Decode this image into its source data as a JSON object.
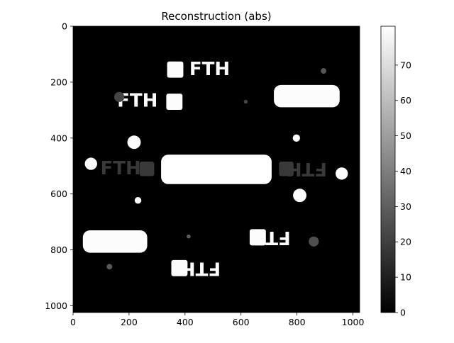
{
  "chart_data": {
    "type": "heatmap",
    "title": "Reconstruction (abs)",
    "xlabel": "",
    "ylabel": "",
    "xlim": [
      0,
      1024
    ],
    "ylim": [
      1024,
      0
    ],
    "x_ticks": [
      0,
      200,
      400,
      600,
      800,
      1000
    ],
    "y_ticks": [
      0,
      200,
      400,
      600,
      800,
      1000
    ],
    "colorbar": {
      "range": [
        0,
        81
      ],
      "ticks": [
        0,
        10,
        20,
        30,
        40,
        50,
        60,
        70
      ],
      "colormap": "gray"
    },
    "background_value": 0,
    "grid": false,
    "text_marks": [
      {
        "text": "FTH",
        "x": 488,
        "y": 155,
        "mirrored": false,
        "value": 80
      },
      {
        "text": "FTH",
        "x": 230,
        "y": 268,
        "mirrored": false,
        "value": 80
      },
      {
        "text": "FTH",
        "x": 170,
        "y": 510,
        "mirrored": false,
        "value": 18
      },
      {
        "text": "FTH",
        "x": 835,
        "y": 510,
        "mirrored": true,
        "value": 18
      },
      {
        "text": "FTH",
        "x": 705,
        "y": 755,
        "mirrored": true,
        "value": 80
      },
      {
        "text": "FTH",
        "x": 455,
        "y": 865,
        "mirrored": true,
        "value": 80
      }
    ],
    "blobs": [
      {
        "x": 835,
        "y": 250,
        "w": 235,
        "h": 80,
        "value": 80
      },
      {
        "x": 150,
        "y": 770,
        "w": 230,
        "h": 80,
        "value": 80
      },
      {
        "x": 512,
        "y": 512,
        "w": 395,
        "h": 105,
        "value": 81
      },
      {
        "x": 220,
        "y": 715,
        "w": 1,
        "h": 1,
        "value": 0
      }
    ],
    "squares": [
      {
        "x": 365,
        "y": 155,
        "size": 58,
        "value": 80
      },
      {
        "x": 362,
        "y": 270,
        "size": 58,
        "value": 80
      },
      {
        "x": 264,
        "y": 510,
        "size": 52,
        "value": 18
      },
      {
        "x": 762,
        "y": 510,
        "size": 52,
        "value": 18
      },
      {
        "x": 660,
        "y": 755,
        "size": 58,
        "value": 80
      },
      {
        "x": 380,
        "y": 865,
        "size": 58,
        "value": 80
      }
    ],
    "dots": [
      {
        "x": 165,
        "y": 253,
        "r": 18,
        "value": 22
      },
      {
        "x": 895,
        "y": 160,
        "r": 10,
        "value": 28
      },
      {
        "x": 617,
        "y": 270,
        "r": 7,
        "value": 22
      },
      {
        "x": 798,
        "y": 400,
        "r": 13,
        "value": 80
      },
      {
        "x": 218,
        "y": 415,
        "r": 24,
        "value": 80
      },
      {
        "x": 64,
        "y": 492,
        "r": 22,
        "value": 80
      },
      {
        "x": 960,
        "y": 527,
        "r": 22,
        "value": 80
      },
      {
        "x": 810,
        "y": 605,
        "r": 24,
        "value": 80
      },
      {
        "x": 232,
        "y": 623,
        "r": 12,
        "value": 80
      },
      {
        "x": 413,
        "y": 752,
        "r": 7,
        "value": 30
      },
      {
        "x": 860,
        "y": 770,
        "r": 18,
        "value": 25
      },
      {
        "x": 130,
        "y": 860,
        "r": 10,
        "value": 28
      }
    ]
  }
}
